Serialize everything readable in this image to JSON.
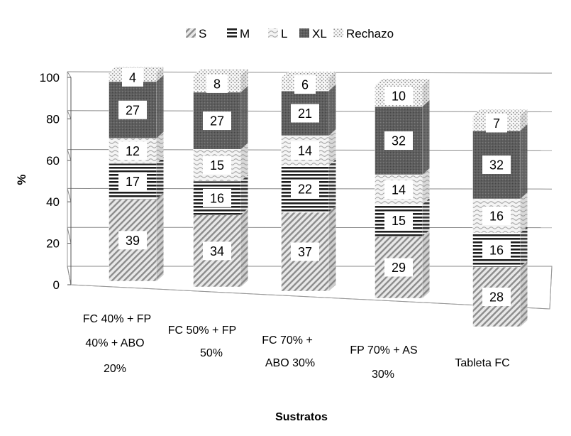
{
  "chart_data": {
    "type": "bar",
    "stacked": true,
    "three_d": true,
    "categories": [
      [
        "FC 40% + FP",
        "40% + ABO",
        "20%"
      ],
      [
        "FC 50% + FP",
        "50%"
      ],
      [
        "FC 70% +",
        "ABO 30%"
      ],
      [
        "FP 70% + AS",
        "30%"
      ],
      [
        "Tableta FC"
      ]
    ],
    "series": [
      {
        "name": "S",
        "values": [
          39,
          34,
          37,
          29,
          28
        ],
        "pattern": "diagonal-light",
        "color": "#9a9a9a"
      },
      {
        "name": "M",
        "values": [
          17,
          16,
          22,
          15,
          16
        ],
        "pattern": "horizontal-dark",
        "color": "#2a2a2a"
      },
      {
        "name": "L",
        "values": [
          12,
          15,
          14,
          14,
          16
        ],
        "pattern": "wavy-light",
        "color": "#bdbdbd"
      },
      {
        "name": "XL",
        "values": [
          27,
          27,
          21,
          32,
          32
        ],
        "pattern": "dense-dark",
        "color": "#5a5a5a"
      },
      {
        "name": "Rechazo",
        "values": [
          4,
          8,
          6,
          10,
          7
        ],
        "pattern": "dotted",
        "color": "#b0b0b0"
      }
    ],
    "title": "",
    "xlabel": "Sustratos",
    "ylabel": "%",
    "ylim": [
      0,
      100
    ],
    "yticks": [
      "0",
      "20",
      "40",
      "60",
      "80",
      "100"
    ],
    "grid": true,
    "legend": "top"
  }
}
